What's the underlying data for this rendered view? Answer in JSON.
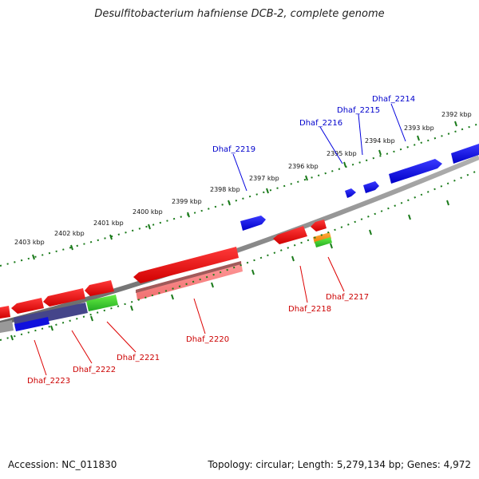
{
  "title": "Desulfitobacterium hafniense DCB-2, complete genome",
  "footer": {
    "accession": "Accession: NC_011830",
    "summary": "Topology: circular; Length: 5,279,134 bp; Genes: 4,972"
  },
  "colors": {
    "forward": "#0000ee",
    "reverse": "#ee0000",
    "tick": "#1a7a1a",
    "backbone": "#888888"
  },
  "scale_labels": [
    "2392 kbp",
    "2393 kbp",
    "2394 kbp",
    "2395 kbp",
    "2396 kbp",
    "2397 kbp",
    "2398 kbp",
    "2399 kbp",
    "2400 kbp",
    "2401 kbp",
    "2402 kbp",
    "2403 kbp"
  ],
  "gene_labels": {
    "top": [
      "Dhaf_2214",
      "Dhaf_2215",
      "Dhaf_2216",
      "Dhaf_2219"
    ],
    "bottom": [
      "Dhaf_2217",
      "Dhaf_2218",
      "Dhaf_2220",
      "Dhaf_2221",
      "Dhaf_2222",
      "Dhaf_2223"
    ]
  }
}
